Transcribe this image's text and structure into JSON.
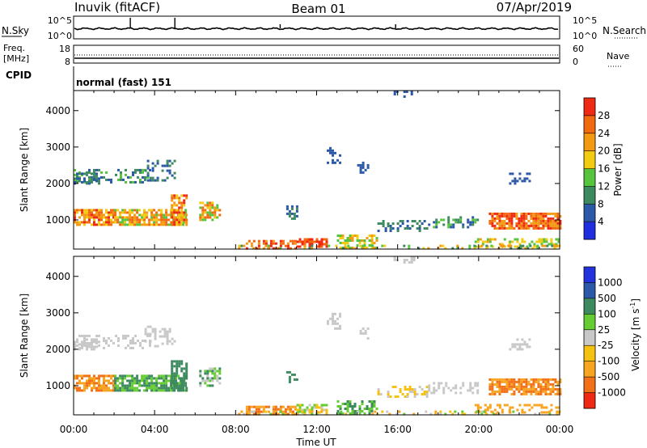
{
  "header": {
    "station": "Inuvik (fitACF)",
    "beam": "Beam 01",
    "date": "07/Apr/2019"
  },
  "side_labels": {
    "nsky": "N.Sky",
    "freq": "Freq.",
    "freq_unit": "[MHz]",
    "cpid": "CPID",
    "nsearch": "N.Search",
    "nave": "Nave"
  },
  "top_panels": {
    "noise_ticks_left": [
      "10^5",
      "10^0"
    ],
    "noise_ticks_right": [
      "10^5",
      "10^0"
    ],
    "freq_ticks": [
      "18",
      "8"
    ],
    "nave_ticks": [
      "60",
      "0"
    ],
    "cpid_text": "normal (fast) 151"
  },
  "colors": {
    "power": [
      "#1f2fe0",
      "#2c58a8",
      "#3d8a60",
      "#57c43f",
      "#f2cc13",
      "#f39a12",
      "#f26a10",
      "#ef2a14"
    ],
    "velocity": [
      "#2233dd",
      "#2c58a8",
      "#3d8a5f",
      "#66cc33",
      "#c8c8c8",
      "#f6c211",
      "#f7a520",
      "#f27018",
      "#ef2a14"
    ]
  },
  "chart_data": [
    {
      "type": "heatmap",
      "name": "power-panel",
      "ylabel": "Slant Range [km]",
      "xlabel": "",
      "yticks": [
        "1000",
        "2000",
        "3000",
        "4000"
      ],
      "ylim": [
        200,
        4550
      ],
      "xlim_hours": [
        0,
        24
      ],
      "colorbar": {
        "label": "Power [dB]",
        "ticks": [
          "4",
          "8",
          "12",
          "16",
          "20",
          "24",
          "28"
        ],
        "range": [
          0,
          32
        ]
      }
    },
    {
      "type": "heatmap",
      "name": "velocity-panel",
      "ylabel": "Slant Range [km]",
      "xlabel": "Time UT",
      "xticks": [
        "00:00",
        "04:00",
        "08:00",
        "12:00",
        "16:00",
        "20:00",
        "00:00"
      ],
      "yticks": [
        "1000",
        "2000",
        "3000",
        "4000"
      ],
      "ylim": [
        200,
        4550
      ],
      "xlim_hours": [
        0,
        24
      ],
      "colorbar": {
        "label": "Velocity [m s-1]",
        "ticks": [
          "1000",
          "500",
          "100",
          "25",
          "-25",
          "-100",
          "-500",
          "-1000"
        ]
      }
    }
  ]
}
